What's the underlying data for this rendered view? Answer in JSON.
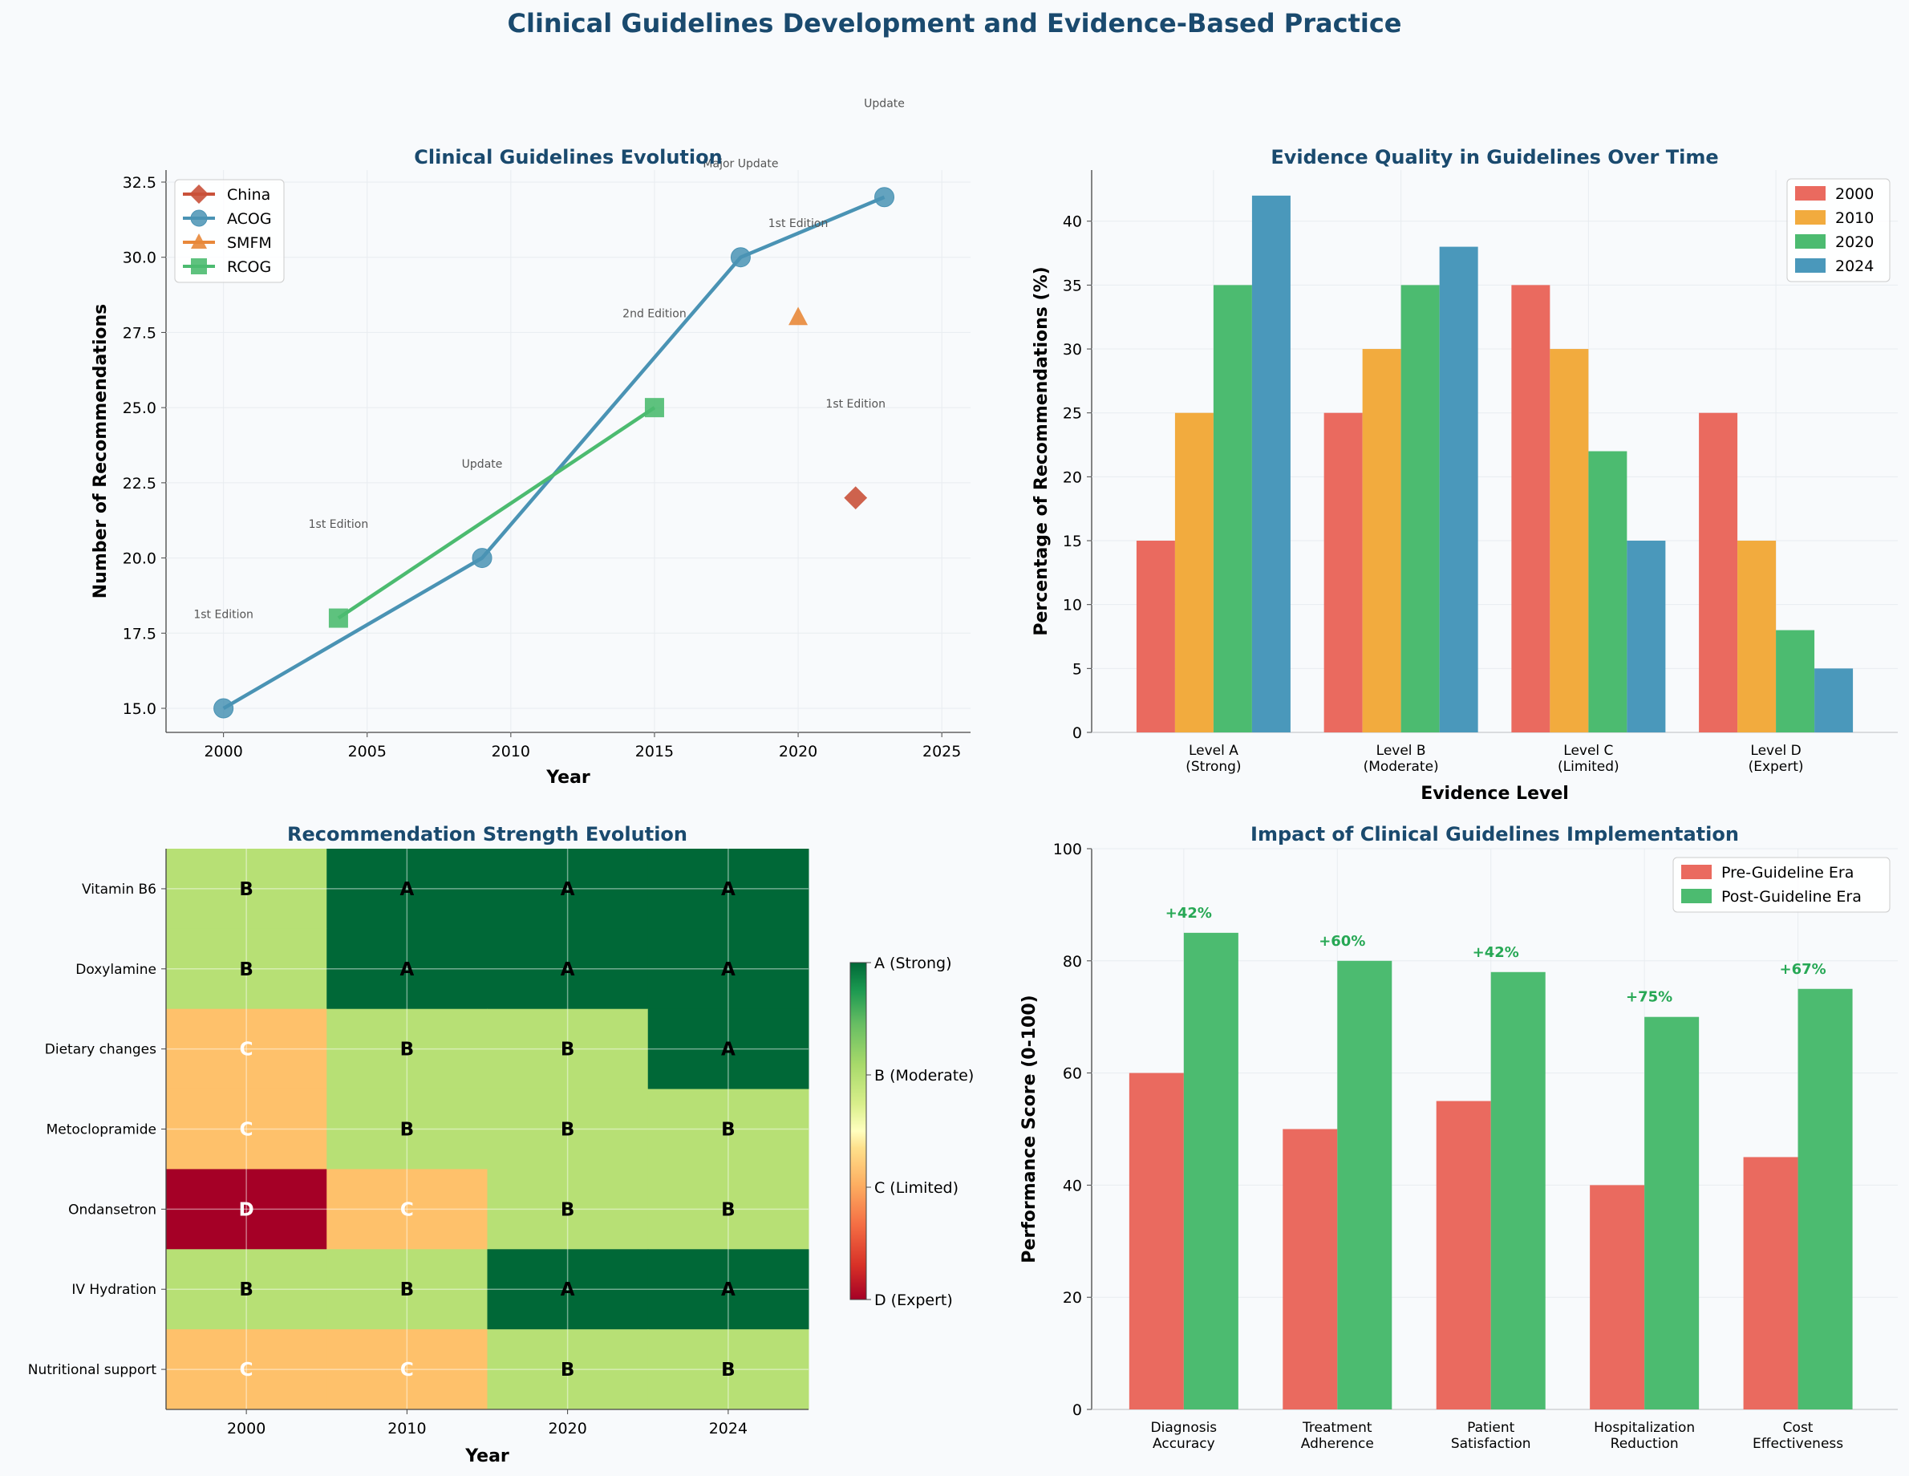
{
  "figure_title": "Clinical Guidelines Development and Evidence-Based Practice",
  "colors": {
    "title": "#1a4a6e",
    "China": "#c9513a",
    "ACOG": "#4a93b4",
    "SMFM": "#e8883a",
    "RCOG": "#4cbb70",
    "y2000": "#ea6a5f",
    "y2010": "#f2ab3e",
    "y2020": "#4cbb70",
    "y2024": "#4a98bb",
    "pre": "#ea6a5f",
    "post": "#4cbb70",
    "gainText": "#27a855",
    "grid": "#e8ecf0"
  },
  "chart_data": [
    {
      "id": "evolution",
      "type": "line",
      "title": "Clinical Guidelines Evolution",
      "xlabel": "Year",
      "ylabel": "Number of Recommendations",
      "xlim": [
        1998,
        2026
      ],
      "ylim": [
        14.2,
        32.9
      ],
      "xticks": [
        "2000",
        "2005",
        "2010",
        "2015",
        "2020",
        "2025"
      ],
      "yticks": [
        "15.0",
        "17.5",
        "20.0",
        "22.5",
        "25.0",
        "27.5",
        "30.0",
        "32.5"
      ],
      "legend": "top-left",
      "series": [
        {
          "name": "China",
          "marker": "diamond",
          "x": [
            2022
          ],
          "y": [
            22
          ]
        },
        {
          "name": "ACOG",
          "marker": "circle",
          "x": [
            2000,
            2009,
            2018,
            2023
          ],
          "y": [
            15,
            20,
            30,
            32
          ]
        },
        {
          "name": "SMFM",
          "marker": "triangle",
          "x": [
            2020
          ],
          "y": [
            28
          ]
        },
        {
          "name": "RCOG",
          "marker": "square",
          "x": [
            2004,
            2015
          ],
          "y": [
            18,
            25
          ]
        }
      ],
      "annotations": [
        {
          "text": "1st Edition",
          "x": 2000,
          "y": 18
        },
        {
          "text": "1st Edition",
          "x": 2004,
          "y": 21
        },
        {
          "text": "Update",
          "x": 2009,
          "y": 23
        },
        {
          "text": "2nd Edition",
          "x": 2015,
          "y": 28
        },
        {
          "text": "Major Update",
          "x": 2018,
          "y": 33
        },
        {
          "text": "1st Edition",
          "x": 2020,
          "y": 31
        },
        {
          "text": "1st Edition",
          "x": 2022,
          "y": 25
        },
        {
          "text": "Update",
          "x": 2023,
          "y": 35
        }
      ]
    },
    {
      "id": "quality",
      "type": "bar",
      "title": "Evidence Quality in Guidelines Over Time",
      "xlabel": "Evidence Level",
      "ylabel": "Percentage of Recommendations (%)",
      "ylim": [
        0,
        44
      ],
      "yticks": [
        "0",
        "5",
        "10",
        "15",
        "20",
        "25",
        "30",
        "35",
        "40"
      ],
      "legend": "top-right",
      "categories": [
        [
          "Level A",
          "(Strong)"
        ],
        [
          "Level B",
          "(Moderate)"
        ],
        [
          "Level C",
          "(Limited)"
        ],
        [
          "Level D",
          "(Expert)"
        ]
      ],
      "series": [
        {
          "name": "2000",
          "values": [
            15,
            25,
            35,
            25
          ]
        },
        {
          "name": "2010",
          "values": [
            25,
            30,
            30,
            15
          ]
        },
        {
          "name": "2020",
          "values": [
            35,
            35,
            22,
            8
          ]
        },
        {
          "name": "2024",
          "values": [
            42,
            38,
            15,
            5
          ]
        }
      ]
    },
    {
      "id": "strength",
      "type": "heatmap",
      "title": "Recommendation Strength Evolution",
      "xlabel": "Year",
      "columns": [
        "2000",
        "2010",
        "2020",
        "2024"
      ],
      "rows": [
        "Vitamin B6",
        "Doxylamine",
        "Dietary changes",
        "Metoclopramide",
        "Ondansetron",
        "IV Hydration",
        "Nutritional support"
      ],
      "grades": [
        [
          "B",
          "A",
          "A",
          "A"
        ],
        [
          "B",
          "A",
          "A",
          "A"
        ],
        [
          "C",
          "B",
          "B",
          "A"
        ],
        [
          "C",
          "B",
          "B",
          "B"
        ],
        [
          "D",
          "C",
          "B",
          "B"
        ],
        [
          "B",
          "B",
          "A",
          "A"
        ],
        [
          "C",
          "C",
          "B",
          "B"
        ]
      ],
      "colorbar_labels": [
        "A (Strong)",
        "B (Moderate)",
        "C (Limited)",
        "D (Expert)"
      ]
    },
    {
      "id": "impact",
      "type": "bar",
      "title": "Impact of Clinical Guidelines Implementation",
      "ylabel": "Performance Score (0-100)",
      "ylim": [
        0,
        100
      ],
      "yticks": [
        "0",
        "20",
        "40",
        "60",
        "80",
        "100"
      ],
      "legend": "top-right",
      "categories": [
        [
          "Diagnosis",
          "Accuracy"
        ],
        [
          "Treatment",
          "Adherence"
        ],
        [
          "Patient",
          "Satisfaction"
        ],
        [
          "Hospitalization",
          "Reduction"
        ],
        [
          "Cost",
          "Effectiveness"
        ]
      ],
      "series": [
        {
          "name": "Pre-Guideline Era",
          "values": [
            60,
            50,
            55,
            40,
            45
          ]
        },
        {
          "name": "Post-Guideline Era",
          "values": [
            85,
            80,
            78,
            70,
            75
          ]
        }
      ],
      "gain_labels": [
        "+42%",
        "+60%",
        "+42%",
        "+75%",
        "+67%"
      ]
    }
  ]
}
